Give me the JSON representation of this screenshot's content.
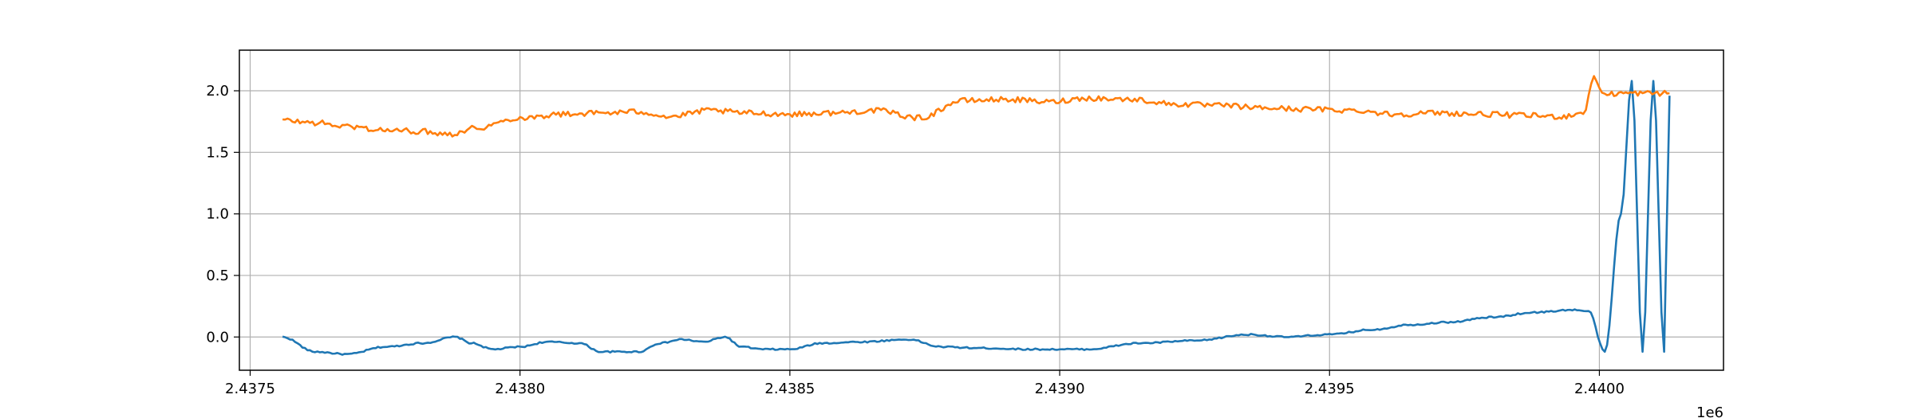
{
  "chart_data": {
    "type": "line",
    "title": "",
    "xlabel": "",
    "ylabel": "",
    "x_offset_label": "1e6",
    "xlim": [
      2.43748,
      2.44023
    ],
    "ylim": [
      -0.27,
      2.33
    ],
    "x_ticks": [
      {
        "value": 2.4375,
        "label": "2.4375"
      },
      {
        "value": 2.438,
        "label": "2.4380"
      },
      {
        "value": 2.4385,
        "label": "2.4385"
      },
      {
        "value": 2.439,
        "label": "2.4390"
      },
      {
        "value": 2.4395,
        "label": "2.4395"
      },
      {
        "value": 2.44,
        "label": "2.4400"
      }
    ],
    "y_ticks": [
      {
        "value": 0.0,
        "label": "0.0"
      },
      {
        "value": 0.5,
        "label": "0.5"
      },
      {
        "value": 1.0,
        "label": "1.0"
      },
      {
        "value": 1.5,
        "label": "1.5"
      },
      {
        "value": 2.0,
        "label": "2.0"
      }
    ],
    "grid": true,
    "legend": "none",
    "series": [
      {
        "color": "#1f77b4",
        "x": [
          2.43756,
          2.43762,
          2.43768,
          2.43775,
          2.43782,
          2.43788,
          2.43791,
          2.43795,
          2.438,
          2.43805,
          2.43811,
          2.43815,
          2.43818,
          2.43822,
          2.43826,
          2.4383,
          2.43834,
          2.43838,
          2.43841,
          2.43845,
          2.4385,
          2.43856,
          2.43863,
          2.43872,
          2.43878,
          2.43885,
          2.43895,
          2.43905,
          2.43915,
          2.43925,
          2.43935,
          2.43942,
          2.4395,
          2.43958,
          2.43965,
          2.43972,
          2.4398,
          2.43988,
          2.43995,
          2.43998,
          2.44001,
          2.44004,
          2.44006,
          2.44008,
          2.4401,
          2.44012,
          2.44013
        ],
        "values": [
          0.0,
          -0.12,
          -0.14,
          -0.08,
          -0.05,
          0.0,
          -0.05,
          -0.1,
          -0.08,
          -0.04,
          -0.05,
          -0.12,
          -0.12,
          -0.12,
          -0.05,
          -0.02,
          -0.04,
          0.0,
          -0.08,
          -0.1,
          -0.1,
          -0.05,
          -0.04,
          -0.02,
          -0.08,
          -0.09,
          -0.1,
          -0.1,
          -0.05,
          -0.03,
          0.02,
          0.0,
          0.02,
          0.06,
          0.1,
          0.12,
          0.16,
          0.2,
          0.22,
          0.21,
          -0.12,
          1.0,
          2.08,
          -0.12,
          2.08,
          -0.12,
          1.96
        ]
      },
      {
        "color": "#ff7f0e",
        "x": [
          2.43756,
          2.43762,
          2.43768,
          2.43775,
          2.43782,
          2.43787,
          2.43792,
          2.438,
          2.43808,
          2.43815,
          2.43822,
          2.43828,
          2.43835,
          2.43842,
          2.4385,
          2.43858,
          2.43866,
          2.43874,
          2.43882,
          2.4389,
          2.43898,
          2.43905,
          2.43913,
          2.43922,
          2.4393,
          2.43938,
          2.43946,
          2.43955,
          2.43962,
          2.4397,
          2.43978,
          2.43986,
          2.43993,
          2.43997,
          2.43999,
          2.44001,
          2.44004,
          2.44008,
          2.44013
        ],
        "values": [
          1.76,
          1.74,
          1.71,
          1.68,
          1.67,
          1.65,
          1.7,
          1.78,
          1.81,
          1.82,
          1.83,
          1.79,
          1.84,
          1.82,
          1.81,
          1.82,
          1.84,
          1.78,
          1.92,
          1.93,
          1.91,
          1.94,
          1.93,
          1.89,
          1.88,
          1.86,
          1.85,
          1.84,
          1.81,
          1.82,
          1.81,
          1.8,
          1.79,
          1.82,
          2.1,
          1.97,
          1.98,
          1.98,
          1.98
        ]
      }
    ]
  }
}
